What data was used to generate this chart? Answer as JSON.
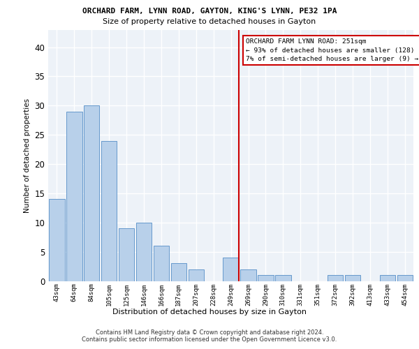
{
  "title_line1": "ORCHARD FARM, LYNN ROAD, GAYTON, KING'S LYNN, PE32 1PA",
  "title_line2": "Size of property relative to detached houses in Gayton",
  "xlabel": "Distribution of detached houses by size in Gayton",
  "ylabel": "Number of detached properties",
  "categories": [
    "43sqm",
    "64sqm",
    "84sqm",
    "105sqm",
    "125sqm",
    "146sqm",
    "166sqm",
    "187sqm",
    "207sqm",
    "228sqm",
    "249sqm",
    "269sqm",
    "290sqm",
    "310sqm",
    "331sqm",
    "351sqm",
    "372sqm",
    "392sqm",
    "413sqm",
    "433sqm",
    "454sqm"
  ],
  "values": [
    14,
    29,
    30,
    24,
    9,
    10,
    6,
    3,
    2,
    0,
    4,
    2,
    1,
    1,
    0,
    0,
    1,
    1,
    0,
    1,
    1
  ],
  "bar_color": "#b8d0ea",
  "bar_edge_color": "#6699cc",
  "background_color": "#edf2f8",
  "grid_color": "#ffffff",
  "ref_line_index": 10,
  "annotation_title": "ORCHARD FARM LYNN ROAD: 251sqm",
  "annotation_line2": "← 93% of detached houses are smaller (128)",
  "annotation_line3": "7% of semi-detached houses are larger (9) →",
  "ann_box_color": "#cc0000",
  "ylim_max": 43,
  "yticks": [
    0,
    5,
    10,
    15,
    20,
    25,
    30,
    35,
    40
  ],
  "footer_line1": "Contains HM Land Registry data © Crown copyright and database right 2024.",
  "footer_line2": "Contains public sector information licensed under the Open Government Licence v3.0."
}
